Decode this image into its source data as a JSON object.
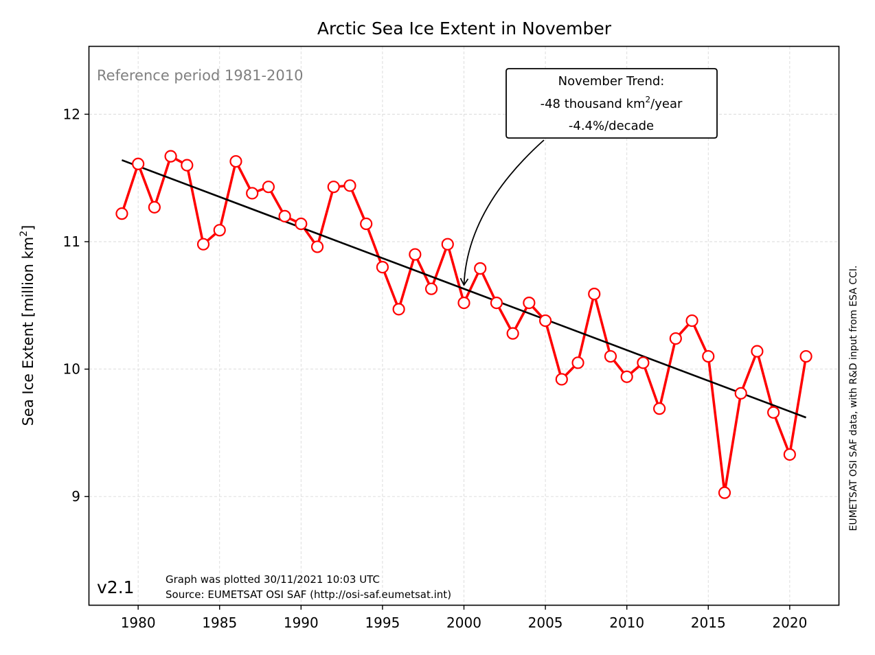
{
  "chart_data": {
    "type": "line",
    "title": "Arctic Sea Ice Extent in November",
    "ylabel_prefix": "Sea Ice Extent [million km",
    "ylabel_sup": "2",
    "ylabel_suffix": "]",
    "xlabel": "",
    "xlim": [
      1977,
      2023
    ],
    "ylim": [
      8.15,
      12.53
    ],
    "xticks": [
      1980,
      1985,
      1990,
      1995,
      2000,
      2005,
      2010,
      2015,
      2020
    ],
    "yticks": [
      9,
      10,
      11,
      12
    ],
    "grid": true,
    "series": [
      {
        "color": "#ff0000",
        "marker": "circle-open",
        "x": [
          1979,
          1980,
          1981,
          1982,
          1983,
          1984,
          1985,
          1986,
          1987,
          1988,
          1989,
          1990,
          1991,
          1992,
          1993,
          1994,
          1995,
          1996,
          1997,
          1998,
          1999,
          2000,
          2001,
          2002,
          2003,
          2004,
          2005,
          2006,
          2007,
          2008,
          2009,
          2010,
          2011,
          2012,
          2013,
          2014,
          2015,
          2016,
          2017,
          2018,
          2019,
          2020,
          2021
        ],
        "values": [
          11.22,
          11.61,
          11.27,
          11.67,
          11.6,
          10.98,
          11.09,
          11.63,
          11.38,
          11.43,
          11.2,
          11.14,
          10.96,
          11.43,
          11.44,
          11.14,
          10.8,
          10.47,
          10.9,
          10.63,
          10.98,
          10.52,
          10.79,
          10.52,
          10.28,
          10.52,
          10.38,
          9.92,
          10.05,
          10.59,
          10.1,
          9.94,
          10.05,
          9.69,
          10.24,
          10.38,
          10.1,
          9.03,
          9.81,
          10.14,
          9.66,
          9.33,
          10.1
        ]
      }
    ],
    "trend": {
      "color": "#000000",
      "x": [
        1979,
        2021
      ],
      "values": [
        11.64,
        9.62
      ],
      "annotation_line1": "November Trend:",
      "annotation_line2_prefix": "-48 thousand km",
      "annotation_line2_sup": "2",
      "annotation_line2_suffix": "/year",
      "annotation_line3": "-4.4%/decade",
      "arrow_target": [
        2000,
        10.66
      ]
    },
    "reference_text": "Reference period 1981-2010",
    "version_text": "v2.1",
    "plotted_text": "Graph was plotted 30/11/2021 10:03 UTC",
    "source_text": "Source: EUMETSAT OSI SAF (http://osi-saf.eumetsat.int)",
    "side_text": "EUMETSAT OSI SAF data, with R&D input from ESA CCI."
  }
}
